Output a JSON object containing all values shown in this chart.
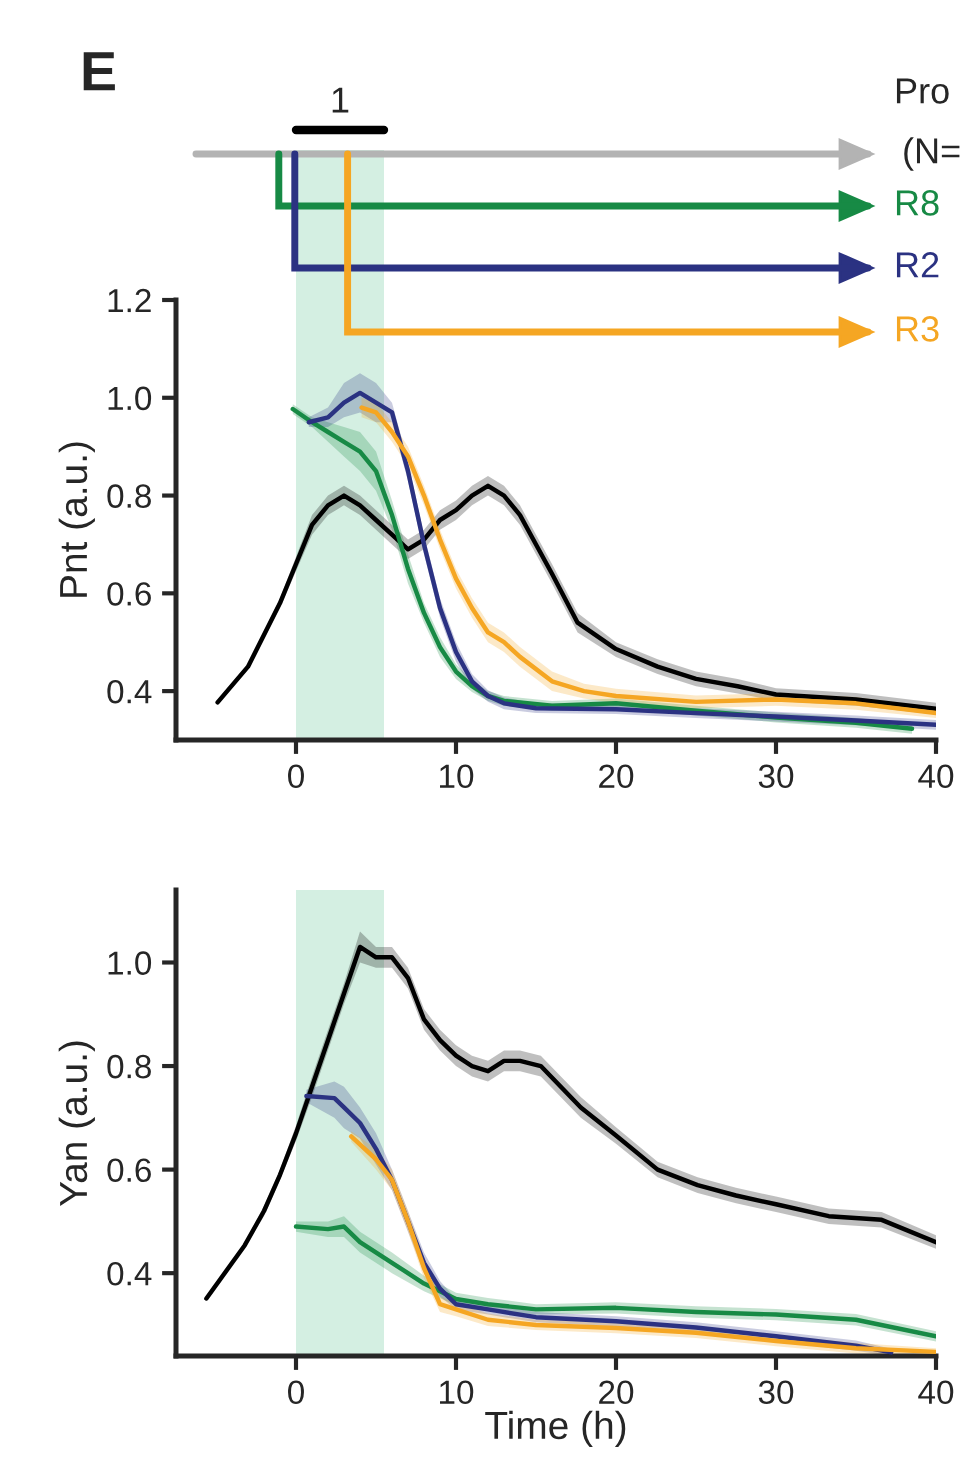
{
  "chart_data": [
    {
      "type": "line",
      "ylabel": "Pnt (a.u.)",
      "annotations": [
        "E",
        "Pro",
        "(N="
      ],
      "xlim": [
        -7.5,
        40
      ],
      "xticks": [
        0,
        10,
        20,
        30,
        40
      ],
      "ylim": [
        0.3,
        1.2
      ],
      "yticks": [
        0.4,
        0.6,
        0.8,
        {
          "value": 1.0,
          "label": "1.0"
        },
        1.2
      ],
      "grid": false,
      "legend": "top right",
      "marker": "none",
      "line_style": "solid",
      "bands": [
        {
          "axis": "x",
          "from": 0,
          "to": 5.5,
          "label": "1",
          "color": "#d4efe2"
        }
      ],
      "series": [
        {
          "color": "#000000",
          "x": [
            -4.9,
            -3,
            -1,
            0,
            1,
            2,
            3,
            4,
            5,
            6,
            7,
            8,
            9,
            10,
            11,
            12,
            13,
            14,
            15,
            16,
            17.6,
            20,
            22.6,
            25,
            27.6,
            30,
            35,
            40
          ],
          "values": [
            0.377,
            0.45,
            0.58,
            0.66,
            0.74,
            0.78,
            0.8,
            0.78,
            0.75,
            0.72,
            0.69,
            0.71,
            0.75,
            0.77,
            0.8,
            0.82,
            0.8,
            0.76,
            0.7,
            0.64,
            0.54,
            0.486,
            0.45,
            0.425,
            0.41,
            0.393,
            0.383,
            0.364
          ],
          "lower": [
            0.372,
            0.445,
            0.57,
            0.645,
            0.72,
            0.76,
            0.78,
            0.76,
            0.73,
            0.7,
            0.67,
            0.69,
            0.73,
            0.75,
            0.78,
            0.8,
            0.78,
            0.74,
            0.68,
            0.62,
            0.52,
            0.47,
            0.435,
            0.41,
            0.395,
            0.38,
            0.37,
            0.352
          ],
          "upper": [
            0.382,
            0.455,
            0.59,
            0.675,
            0.76,
            0.8,
            0.82,
            0.8,
            0.77,
            0.74,
            0.71,
            0.73,
            0.77,
            0.79,
            0.82,
            0.84,
            0.82,
            0.78,
            0.72,
            0.66,
            0.56,
            0.5,
            0.465,
            0.44,
            0.425,
            0.406,
            0.396,
            0.376
          ]
        },
        {
          "name": "R8",
          "color": "#178a45",
          "x": [
            -0.2,
            1,
            2,
            3,
            4,
            5,
            6,
            7,
            8,
            9,
            10,
            11,
            12,
            13,
            16,
            20,
            25,
            30,
            35,
            38.5
          ],
          "values": [
            0.977,
            0.95,
            0.93,
            0.91,
            0.89,
            0.85,
            0.76,
            0.65,
            0.56,
            0.49,
            0.44,
            0.41,
            0.39,
            0.38,
            0.37,
            0.375,
            0.36,
            0.346,
            0.335,
            0.323
          ],
          "lower": [
            0.967,
            0.94,
            0.91,
            0.88,
            0.85,
            0.81,
            0.73,
            0.62,
            0.54,
            0.47,
            0.425,
            0.398,
            0.38,
            0.37,
            0.36,
            0.365,
            0.35,
            0.336,
            0.325,
            0.313
          ],
          "upper": [
            0.987,
            0.96,
            0.95,
            0.94,
            0.93,
            0.89,
            0.79,
            0.68,
            0.58,
            0.51,
            0.455,
            0.422,
            0.4,
            0.39,
            0.38,
            0.385,
            0.37,
            0.356,
            0.345,
            0.333
          ]
        },
        {
          "name": "R2",
          "color": "#2b3282",
          "x": [
            0.8,
            2,
            3,
            4,
            5,
            6,
            7,
            8,
            9,
            10,
            11,
            12,
            13,
            15,
            20,
            25,
            30,
            35,
            40
          ],
          "values": [
            0.95,
            0.96,
            0.99,
            1.01,
            0.99,
            0.97,
            0.85,
            0.7,
            0.57,
            0.48,
            0.42,
            0.39,
            0.375,
            0.365,
            0.363,
            0.355,
            0.348,
            0.34,
            0.331
          ],
          "lower": [
            0.94,
            0.94,
            0.96,
            0.97,
            0.95,
            0.95,
            0.83,
            0.68,
            0.55,
            0.46,
            0.405,
            0.378,
            0.363,
            0.355,
            0.353,
            0.345,
            0.338,
            0.33,
            0.321
          ],
          "upper": [
            0.96,
            0.98,
            1.03,
            1.05,
            1.03,
            0.99,
            0.87,
            0.72,
            0.59,
            0.5,
            0.435,
            0.402,
            0.387,
            0.375,
            0.373,
            0.365,
            0.358,
            0.35,
            0.341
          ]
        },
        {
          "name": "R3",
          "color": "#f5a623",
          "x": [
            4.1,
            5,
            6,
            7,
            8,
            9,
            10,
            11,
            12,
            13,
            14,
            16,
            18,
            20,
            25,
            30,
            35,
            40
          ],
          "values": [
            0.98,
            0.97,
            0.93,
            0.88,
            0.8,
            0.71,
            0.63,
            0.57,
            0.52,
            0.5,
            0.47,
            0.42,
            0.4,
            0.39,
            0.378,
            0.383,
            0.375,
            0.355
          ],
          "lower": [
            0.96,
            0.95,
            0.91,
            0.86,
            0.78,
            0.69,
            0.61,
            0.55,
            0.5,
            0.48,
            0.45,
            0.4,
            0.385,
            0.375,
            0.365,
            0.37,
            0.362,
            0.345
          ],
          "upper": [
            1.0,
            0.99,
            0.95,
            0.9,
            0.82,
            0.73,
            0.65,
            0.59,
            0.54,
            0.52,
            0.49,
            0.44,
            0.415,
            0.405,
            0.391,
            0.396,
            0.388,
            0.365
          ]
        }
      ]
    },
    {
      "type": "line",
      "ylabel": "Yan (a.u.)",
      "xlabel": "Time (h)",
      "xlim": [
        -7.5,
        40
      ],
      "xticks": [
        0,
        10,
        20,
        30,
        40
      ],
      "ylim": [
        0.24,
        1.14
      ],
      "yticks": [
        0.4,
        0.6,
        0.8,
        {
          "value": 1.0,
          "label": "1.0"
        }
      ],
      "grid": false,
      "marker": "none",
      "line_style": "solid",
      "bands": [
        {
          "axis": "x",
          "from": 0,
          "to": 5.5,
          "color": "#d4efe2"
        }
      ],
      "series": [
        {
          "color": "#000000",
          "x": [
            -5.6,
            -3.2,
            -2,
            -1,
            0,
            1,
            2,
            3,
            4,
            5,
            6,
            7,
            8,
            9,
            10,
            11,
            12,
            13,
            14,
            15.3,
            17.8,
            20,
            22.6,
            25.1,
            27.5,
            30,
            33.3,
            36.6,
            40
          ],
          "values": [
            0.351,
            0.454,
            0.52,
            0.59,
            0.67,
            0.76,
            0.85,
            0.94,
            1.03,
            1.01,
            1.01,
            0.97,
            0.89,
            0.85,
            0.82,
            0.8,
            0.79,
            0.81,
            0.81,
            0.8,
            0.72,
            0.666,
            0.6,
            0.57,
            0.55,
            0.533,
            0.51,
            0.503,
            0.46
          ],
          "lower": [
            0.346,
            0.449,
            0.51,
            0.58,
            0.655,
            0.74,
            0.83,
            0.92,
            1.0,
            0.99,
            0.99,
            0.95,
            0.87,
            0.83,
            0.8,
            0.78,
            0.77,
            0.79,
            0.79,
            0.78,
            0.7,
            0.65,
            0.585,
            0.555,
            0.535,
            0.518,
            0.495,
            0.488,
            0.447
          ],
          "upper": [
            0.356,
            0.459,
            0.53,
            0.6,
            0.685,
            0.78,
            0.87,
            0.96,
            1.06,
            1.03,
            1.03,
            0.99,
            0.91,
            0.87,
            0.84,
            0.82,
            0.81,
            0.83,
            0.83,
            0.82,
            0.74,
            0.682,
            0.615,
            0.585,
            0.565,
            0.548,
            0.525,
            0.518,
            0.473
          ]
        },
        {
          "color": "#178a45",
          "x": [
            0,
            2,
            3,
            4,
            6,
            8,
            10,
            12,
            15,
            20,
            25,
            30,
            35,
            40
          ],
          "values": [
            0.49,
            0.485,
            0.49,
            0.46,
            0.42,
            0.38,
            0.35,
            0.34,
            0.33,
            0.333,
            0.325,
            0.32,
            0.31,
            0.278
          ],
          "lower": [
            0.48,
            0.47,
            0.47,
            0.44,
            0.4,
            0.365,
            0.338,
            0.328,
            0.32,
            0.322,
            0.314,
            0.309,
            0.299,
            0.268
          ],
          "upper": [
            0.5,
            0.5,
            0.51,
            0.48,
            0.44,
            0.395,
            0.362,
            0.352,
            0.34,
            0.344,
            0.336,
            0.331,
            0.321,
            0.288
          ]
        },
        {
          "color": "#2b3282",
          "x": [
            0.65,
            2.4,
            3,
            4,
            5,
            6,
            7,
            8,
            9,
            10,
            12,
            15,
            20,
            25,
            30,
            35,
            37.2
          ],
          "values": [
            0.742,
            0.738,
            0.72,
            0.69,
            0.64,
            0.58,
            0.5,
            0.42,
            0.37,
            0.34,
            0.33,
            0.315,
            0.307,
            0.295,
            0.278,
            0.26,
            0.247
          ],
          "lower": [
            0.73,
            0.7,
            0.68,
            0.66,
            0.61,
            0.56,
            0.48,
            0.4,
            0.355,
            0.33,
            0.32,
            0.305,
            0.297,
            0.285,
            0.268,
            0.25,
            0.24
          ],
          "upper": [
            0.754,
            0.77,
            0.76,
            0.72,
            0.67,
            0.6,
            0.52,
            0.44,
            0.385,
            0.35,
            0.34,
            0.325,
            0.317,
            0.305,
            0.288,
            0.27,
            0.254
          ]
        },
        {
          "color": "#f5a623",
          "x": [
            3.45,
            5,
            6,
            7,
            8,
            9,
            10,
            12,
            15,
            20,
            25,
            30,
            35,
            40
          ],
          "values": [
            0.664,
            0.62,
            0.58,
            0.5,
            0.41,
            0.34,
            0.33,
            0.31,
            0.3,
            0.294,
            0.285,
            0.269,
            0.255,
            0.248
          ],
          "lower": [
            0.654,
            0.6,
            0.56,
            0.48,
            0.39,
            0.325,
            0.317,
            0.298,
            0.29,
            0.284,
            0.275,
            0.259,
            0.245,
            0.241
          ],
          "upper": [
            0.674,
            0.64,
            0.6,
            0.52,
            0.43,
            0.355,
            0.343,
            0.322,
            0.31,
            0.304,
            0.295,
            0.279,
            0.265,
            0.255
          ]
        }
      ]
    }
  ]
}
